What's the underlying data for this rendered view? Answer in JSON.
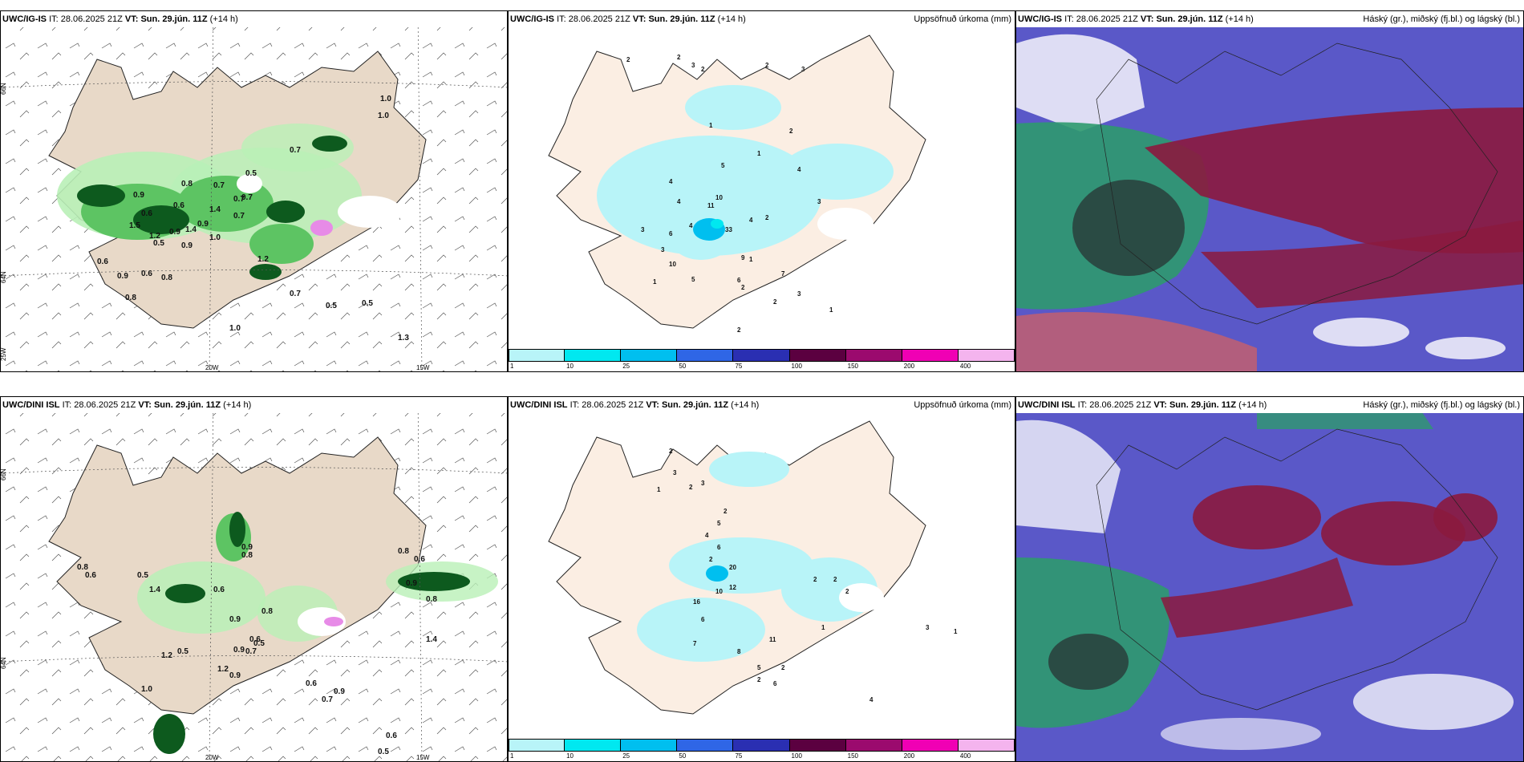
{
  "panels": {
    "p1": {
      "model": "UWC/IG-IS",
      "it_label": "IT:",
      "it_value": "28.06.2025 21Z",
      "vt_label": "VT:",
      "vt_value": "Sun. 29.jún. 11Z",
      "lead": "(+14 h)",
      "right": ""
    },
    "p2": {
      "model": "UWC/IG-IS",
      "it_label": "IT:",
      "it_value": "28.06.2025 21Z",
      "vt_label": "VT:",
      "vt_value": "Sun. 29.jún. 11Z",
      "lead": "(+14 h)",
      "right": "Uppsöfnuð úrkoma (mm)"
    },
    "p3": {
      "model": "UWC/IG-IS",
      "it_label": "IT:",
      "it_value": "28.06.2025 21Z",
      "vt_label": "VT:",
      "vt_value": "Sun. 29.jún. 11Z",
      "lead": "(+14 h)",
      "right": "Háský (gr.), miðský (fj.bl.) og lágský (bl.)"
    },
    "p4": {
      "model": "UWC/DINI ISL",
      "it_label": "IT:",
      "it_value": "28.06.2025 21Z",
      "vt_label": "VT:",
      "vt_value": "Sun. 29.jún. 11Z",
      "lead": "(+14 h)",
      "right": ""
    },
    "p5": {
      "model": "UWC/DINI ISL",
      "it_label": "IT:",
      "it_value": "28.06.2025 21Z",
      "vt_label": "VT:",
      "vt_value": "Sun. 29.jún. 11Z",
      "lead": "(+14 h)",
      "right": "Uppsöfnuð úrkoma (mm)"
    },
    "p6": {
      "model": "UWC/DINI ISL",
      "it_label": "IT:",
      "it_value": "28.06.2025 21Z",
      "vt_label": "VT:",
      "vt_value": "Sun. 29.jún. 11Z",
      "lead": "(+14 h)",
      "right": "Háský (gr.), miðský (fj.bl.) og lágský (bl.)"
    }
  },
  "axes": {
    "lat66": "66N",
    "lat64": "64N",
    "lon25": "25W",
    "lon20": "20W",
    "lon15": "15W"
  },
  "colorbar": {
    "ticks": [
      "1",
      "10",
      "25",
      "50",
      "75",
      "100",
      "150",
      "200",
      "400"
    ],
    "colors": [
      "#b8f4f8",
      "#00e8f0",
      "#00bfef",
      "#2f66e6",
      "#2a2fb2",
      "#5b0040",
      "#9b0a6e",
      "#f000b4",
      "#f4b4ee"
    ]
  },
  "colors": {
    "land": "#e8d9c8",
    "land_light": "#fbeee3",
    "precip_light": "#b9f0b7",
    "precip_mid": "#5dc463",
    "precip_dark": "#0d5a1e",
    "cloud_high": "#5a58c8",
    "cloud_mid": "#8b1a3e",
    "cloud_low": "#2e9a6e"
  },
  "labels": {
    "p1": [
      "0.9",
      "0.7",
      "1.0",
      "0.7",
      "0.5",
      "0.7",
      "0.8",
      "0.6",
      "0.7",
      "0.9",
      "1.4",
      "0.9",
      "1.0",
      "0.6",
      "1.2",
      "0.7",
      "0.5",
      "1.0",
      "0.8",
      "1.2",
      "0.5",
      "1.0",
      "1.3",
      "0.6",
      "0.9",
      "0.8",
      "1.5",
      "0.6",
      "0.9",
      "1.4",
      "0.5",
      "0.7"
    ],
    "p2": [
      "2",
      "2",
      "3",
      "2",
      "2",
      "3",
      "1",
      "4",
      "4",
      "3",
      "11",
      "10",
      "33",
      "4",
      "6",
      "3",
      "9",
      "4",
      "2",
      "2",
      "6",
      "10",
      "7",
      "3",
      "1",
      "5",
      "1",
      "2",
      "4",
      "3",
      "2",
      "1",
      "2",
      "5",
      "1"
    ],
    "p4": [
      "0.8",
      "0.6",
      "0.5",
      "1.4",
      "1.2",
      "1.0",
      "0.9",
      "0.8",
      "0.6",
      "0.9",
      "0.5",
      "0.8",
      "0.6",
      "0.9",
      "0.7",
      "0.5",
      "1.2",
      "0.9",
      "0.6",
      "0.7",
      "0.9",
      "0.8",
      "0.6",
      "0.9",
      "0.8",
      "1.4",
      "0.6",
      "0.5"
    ],
    "p5": [
      "2",
      "3",
      "1",
      "2",
      "3",
      "2",
      "5",
      "4",
      "6",
      "2",
      "20",
      "12",
      "10",
      "16",
      "6",
      "7",
      "8",
      "11",
      "5",
      "6",
      "2",
      "2",
      "1",
      "4",
      "2",
      "2",
      "3",
      "1",
      "2"
    ]
  }
}
